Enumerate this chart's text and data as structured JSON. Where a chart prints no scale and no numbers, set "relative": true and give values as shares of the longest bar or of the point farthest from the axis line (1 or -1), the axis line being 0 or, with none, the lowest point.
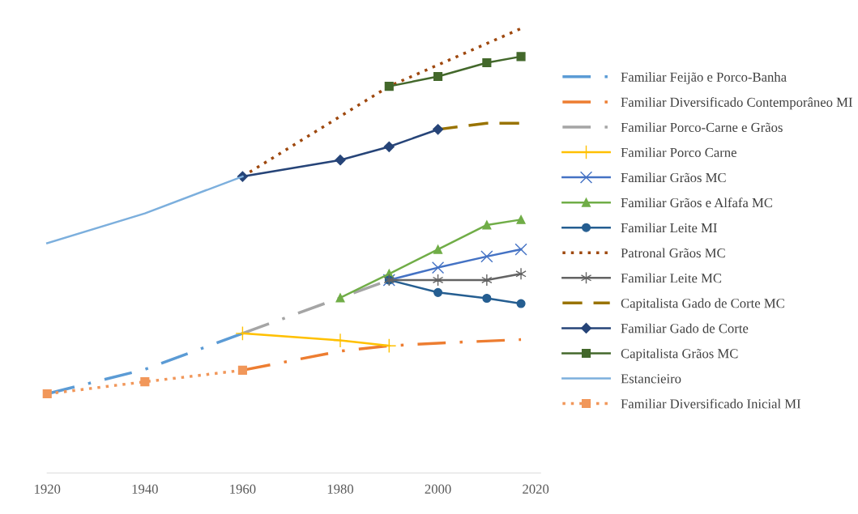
{
  "chart_data": {
    "type": "line",
    "relative": true,
    "xlim": [
      1920,
      2021
    ],
    "xticks": [
      1920,
      1940,
      1960,
      1980,
      2000,
      2020
    ],
    "grid": false,
    "legend": "right",
    "tick_labels": "x",
    "series": [
      {
        "name": "Familiar Feijão e Porco-Banha",
        "color": "#5b9bd5",
        "line_style": "dashdot",
        "marker": "none",
        "x": [
          1920,
          1940,
          1960
        ],
        "values": [
          0.178,
          0.233,
          0.314
        ]
      },
      {
        "name": "Familiar Diversificado Contemporâneo MI",
        "color": "#ed7d31",
        "line_style": "dashdot",
        "marker": "none",
        "x": [
          1960,
          1980,
          1990,
          2000,
          2017
        ],
        "values": [
          0.231,
          0.274,
          0.286,
          0.292,
          0.3
        ]
      },
      {
        "name": "Familiar Porco-Carne e Grãos",
        "color": "#a5a5a5",
        "line_style": "dashdot",
        "marker": "none",
        "x": [
          1960,
          1980,
          1990
        ],
        "values": [
          0.314,
          0.394,
          0.434
        ]
      },
      {
        "name": "Familiar Porco Carne",
        "color": "#ffc000",
        "line_style": "solid",
        "marker": "plus",
        "x": [
          1960,
          1980,
          1990
        ],
        "values": [
          0.314,
          0.298,
          0.286
        ]
      },
      {
        "name": "Familiar Grãos MC",
        "color": "#4472c4",
        "line_style": "solid",
        "marker": "x",
        "x": [
          1990,
          2000,
          2010,
          2017
        ],
        "values": [
          0.434,
          0.462,
          0.487,
          0.503
        ]
      },
      {
        "name": "Familiar Grãos e Alfafa MC",
        "color": "#70ad47",
        "line_style": "solid",
        "marker": "triangle",
        "x": [
          1980,
          1990,
          2000,
          2010,
          2017
        ],
        "values": [
          0.394,
          0.448,
          0.503,
          0.558,
          0.57
        ]
      },
      {
        "name": "Familiar Leite MI",
        "color": "#255e91",
        "line_style": "solid",
        "marker": "circle",
        "x": [
          1990,
          2000,
          2010,
          2017
        ],
        "values": [
          0.434,
          0.406,
          0.393,
          0.381
        ]
      },
      {
        "name": "Patronal Grãos MC",
        "color": "#9e480e",
        "line_style": "dotted",
        "marker": "none",
        "x": [
          1960,
          1990,
          2017
        ],
        "values": [
          0.667,
          0.87,
          1.0
        ]
      },
      {
        "name": "Familiar Leite MC",
        "color": "#636363",
        "line_style": "solid",
        "marker": "cross",
        "x": [
          1990,
          2000,
          2010,
          2017
        ],
        "values": [
          0.434,
          0.434,
          0.434,
          0.448
        ]
      },
      {
        "name": "Capitalista Gado de Corte MC",
        "color": "#997300",
        "line_style": "dashed",
        "marker": "none",
        "x": [
          2000,
          2010,
          2017
        ],
        "values": [
          0.773,
          0.787,
          0.787
        ]
      },
      {
        "name": "Familiar Gado de Corte",
        "color": "#264478",
        "line_style": "solid",
        "marker": "diamond",
        "x": [
          1960,
          1980,
          1990,
          2000
        ],
        "values": [
          0.667,
          0.704,
          0.734,
          0.773
        ]
      },
      {
        "name": "Capitalista Grãos MC",
        "color": "#43682b",
        "line_style": "solid",
        "marker": "square",
        "x": [
          1990,
          2000,
          2010,
          2017
        ],
        "values": [
          0.87,
          0.892,
          0.923,
          0.937
        ]
      },
      {
        "name": "Estancieiro",
        "color": "#7cafdd",
        "line_style": "solid",
        "marker": "none",
        "x": [
          1920,
          1940,
          1960
        ],
        "values": [
          0.517,
          0.584,
          0.667
        ]
      },
      {
        "name": "Familiar Diversificado Inicial MI",
        "color": "#f1975a",
        "line_style": "dotted",
        "marker": "square",
        "x": [
          1920,
          1940,
          1960
        ],
        "values": [
          0.178,
          0.205,
          0.231
        ]
      }
    ]
  }
}
